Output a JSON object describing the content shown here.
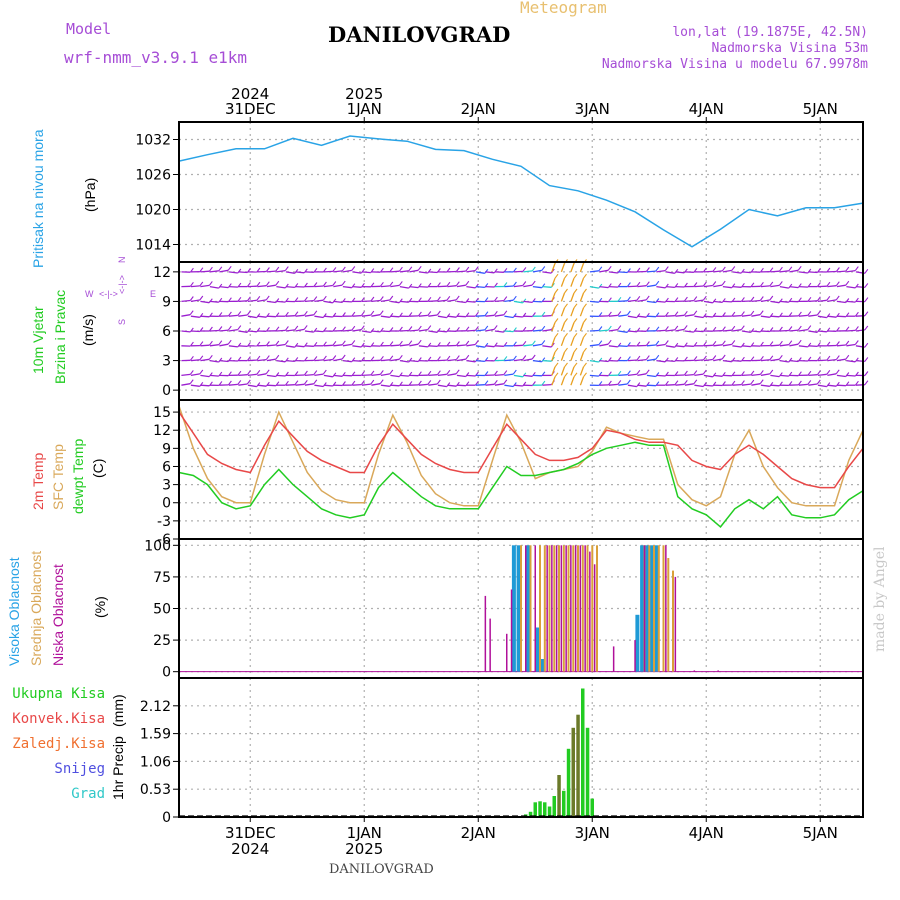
{
  "header": {
    "model_label": "Model",
    "model_name": "wrf-nmm_v3.9.1  e1km",
    "station": "DANILOVGRAD",
    "product": "Meteogram",
    "lonlat": "lon,lat (19.1875E, 42.5N)",
    "elevation": "Nadmorska Visina 53m",
    "elevation_model": "Nadmorska Visina u modelu 67.9978m",
    "footer_station": "DANILOVGRAD",
    "watermark": "made by Angel"
  },
  "colors": {
    "pressure": "#29a3e6",
    "wind_axis_label": "#22cc22",
    "wind_barb_low": "#9b1fd0",
    "wind_barb_mid": "#3355ff",
    "wind_barb_high": "#22cccc",
    "wind_barb_storm": "#e8a020",
    "temp_2m": "#e84848",
    "temp_sfc": "#d9a85a",
    "dewpoint": "#22cc22",
    "cloud_high": "#1e9ad6",
    "cloud_mid": "#d9a03a",
    "cloud_low": "#b0109a",
    "precip_total": "#22cc22",
    "precip_conv": "#e84848",
    "precip_frz": "#f07030",
    "precip_snow": "#5050e0",
    "precip_grad": "#30c8c8",
    "precip_overlap": "#6b7a2a",
    "grid": "#b0b0b0"
  },
  "time_axis": {
    "top_labels": [
      {
        "year": "2024",
        "day": "31DEC"
      },
      {
        "year": "2025",
        "day": "1JAN"
      },
      {
        "year": "",
        "day": "2JAN"
      },
      {
        "year": "",
        "day": "3JAN"
      },
      {
        "year": "",
        "day": "4JAN"
      },
      {
        "year": "",
        "day": "5JAN"
      }
    ],
    "bottom_labels": [
      {
        "day": "31DEC",
        "year": "2024"
      },
      {
        "day": "1JAN",
        "year": "2025"
      },
      {
        "day": "2JAN",
        "year": ""
      },
      {
        "day": "3JAN",
        "year": ""
      },
      {
        "day": "4JAN",
        "year": ""
      },
      {
        "day": "5JAN",
        "year": ""
      }
    ]
  },
  "chart_data": [
    {
      "type": "line",
      "panel": "pressure",
      "ylabel_main": "Pritisak na nivou mora",
      "unit": "(hPa)",
      "yticks": [
        1014,
        1020,
        1026,
        1032
      ],
      "ylim": [
        1011,
        1035
      ],
      "x_hours": [
        0,
        6,
        12,
        18,
        24,
        30,
        36,
        42,
        48,
        54,
        60,
        66,
        72,
        78,
        84,
        90,
        96,
        102,
        108,
        114,
        120,
        126,
        132,
        138,
        144
      ],
      "series": [
        {
          "values": [
            1028.3,
            1029.4,
            1030.4,
            1030.4,
            1032.2,
            1031.0,
            1032.6,
            1032.1,
            1031.7,
            1030.3,
            1030.1,
            1028.6,
            1027.4,
            1024.1,
            1023.2,
            1021.6,
            1019.6,
            1016.5,
            1013.6,
            1016.6,
            1020.0,
            1018.9,
            1020.3,
            1020.3,
            1021.1
          ]
        }
      ],
      "grid": true
    },
    {
      "type": "barbs",
      "panel": "wind",
      "ylabel_main": "10m Vjetar",
      "ylabel_sub": "Brzina i Pravac",
      "unit": "(m/s)",
      "compass_n": "N",
      "compass_s": "S",
      "compass_w": "W",
      "compass_e": "E",
      "yticks": [
        0,
        3,
        6,
        9,
        12
      ],
      "ylim": [
        -1,
        13
      ],
      "grid": true
    },
    {
      "type": "line",
      "panel": "temperature",
      "ylabel_1": "2m Temp",
      "ylabel_2": "SFC Temp",
      "ylabel_3": "dewpt Temp",
      "unit": "(C)",
      "yticks": [
        -6,
        -3,
        0,
        3,
        6,
        9,
        12,
        15
      ],
      "ylim": [
        -6,
        17
      ],
      "x_hours": [
        0,
        3,
        6,
        9,
        12,
        15,
        18,
        21,
        24,
        27,
        30,
        33,
        36,
        39,
        42,
        45,
        48,
        51,
        54,
        57,
        60,
        63,
        66,
        69,
        72,
        75,
        78,
        81,
        84,
        87,
        90,
        93,
        96,
        99,
        102,
        105,
        108,
        111,
        114,
        117,
        120,
        123,
        126,
        129,
        132,
        135,
        138,
        141,
        144
      ],
      "series": [
        {
          "name": "2m Temp",
          "values": [
            15.0,
            11.5,
            8.0,
            6.5,
            5.5,
            5.0,
            9.5,
            13.5,
            11.0,
            8.5,
            7.0,
            6.0,
            5.0,
            5.0,
            9.5,
            13.0,
            10.5,
            8.0,
            6.5,
            5.5,
            5.0,
            5.0,
            9.0,
            13.0,
            10.5,
            8.0,
            7.0,
            7.0,
            7.5,
            9.0,
            12.0,
            11.5,
            10.5,
            10.0,
            10.0,
            9.5,
            7.0,
            6.0,
            5.5,
            8.0,
            9.5,
            8.0,
            6.0,
            4.0,
            3.0,
            2.5,
            2.5,
            6.0,
            9.0
          ]
        },
        {
          "name": "SFC Temp",
          "values": [
            16.0,
            9.0,
            4.0,
            1.0,
            0.0,
            0.0,
            8.0,
            15.0,
            10.0,
            5.0,
            2.0,
            0.5,
            0.0,
            0.0,
            8.0,
            14.5,
            10.0,
            4.5,
            1.5,
            0.0,
            -0.5,
            -0.5,
            7.0,
            14.5,
            10.0,
            4.0,
            5.0,
            5.5,
            6.0,
            8.5,
            12.5,
            11.5,
            11.0,
            10.5,
            10.5,
            3.0,
            0.5,
            -0.5,
            1.0,
            8.0,
            12.0,
            6.0,
            2.5,
            0.0,
            -0.5,
            -0.5,
            -0.5,
            7.0,
            12.0
          ]
        },
        {
          "name": "dewpt Temp",
          "values": [
            5.0,
            4.5,
            3.0,
            0.0,
            -1.0,
            -0.5,
            3.0,
            5.5,
            3.0,
            1.0,
            -1.0,
            -2.0,
            -2.5,
            -2.0,
            2.5,
            5.0,
            3.0,
            1.0,
            -0.5,
            -1.0,
            -1.0,
            -1.0,
            2.5,
            6.0,
            4.5,
            4.5,
            5.0,
            5.5,
            6.5,
            8.0,
            9.0,
            9.5,
            10.0,
            9.5,
            9.5,
            1.0,
            -1.0,
            -2.0,
            -4.0,
            -1.0,
            0.5,
            -1.0,
            1.0,
            -2.0,
            -2.5,
            -2.5,
            -2.0,
            0.5,
            2.0
          ]
        }
      ],
      "grid": true
    },
    {
      "type": "bar",
      "panel": "clouds",
      "ylabel_1": "Visoka Oblacnost",
      "ylabel_2": "Srednja Oblacnost",
      "ylabel_3": "Niska Oblacnost",
      "unit": "(%)",
      "yticks": [
        0,
        25,
        50,
        75,
        100
      ],
      "ylim": [
        -5,
        105
      ],
      "series": [
        {
          "name": "Visoka Oblacnost",
          "x_hours": [
            70.5,
            71.5,
            73.5,
            75.5,
            76.5,
            96.5,
            97.5,
            98.5,
            99.5,
            100.5
          ],
          "values": [
            100,
            100,
            100,
            35,
            10,
            45,
            100,
            100,
            100,
            100
          ]
        },
        {
          "name": "Srednja Oblacnost",
          "x_hours": [
            72,
            74,
            76,
            77,
            78,
            79,
            80,
            81,
            82,
            83,
            84,
            85,
            86,
            87,
            88,
            98,
            99,
            100,
            101,
            102,
            103,
            104
          ],
          "values": [
            100,
            100,
            100,
            100,
            100,
            100,
            100,
            100,
            100,
            100,
            100,
            100,
            100,
            100,
            100,
            100,
            100,
            100,
            100,
            100,
            90,
            80
          ]
        },
        {
          "name": "Niska Oblacnost",
          "x_hours": [
            64.5,
            65.5,
            69.0,
            70.0,
            73.0,
            75.0,
            77.5,
            78.5,
            79.5,
            80.5,
            81.5,
            82.5,
            83.5,
            84.5,
            85.5,
            86.5,
            87.5,
            91.5,
            96.0,
            98.0,
            102.5,
            104.5,
            108.5,
            113.5
          ],
          "values": [
            60,
            42,
            30,
            65,
            100,
            100,
            100,
            100,
            100,
            100,
            100,
            100,
            100,
            100,
            100,
            95,
            85,
            20,
            25,
            100,
            100,
            75,
            1,
            1
          ]
        }
      ],
      "grid": true
    },
    {
      "type": "bar",
      "panel": "precip",
      "legend": [
        "Ukupna Kisa",
        "Konvek.Kisa",
        "Zaledj.Kisa",
        "Snijeg",
        "Grad"
      ],
      "ylabel": "1hr Precip",
      "unit": "(mm)",
      "yticks": [
        0,
        0.53,
        1.06,
        1.59,
        2.12
      ],
      "ylim": [
        0,
        2.65
      ],
      "x_hours": [
        73,
        74,
        75,
        76,
        77,
        78,
        79,
        80,
        81,
        82,
        83,
        84,
        85,
        86,
        87
      ],
      "series": [
        {
          "name": "Ukupna Kisa",
          "values": [
            0.05,
            0.1,
            0.28,
            0.3,
            0.28,
            0.2,
            0.4,
            0.8,
            0.5,
            1.3,
            1.7,
            1.95,
            2.45,
            1.7,
            0.35
          ]
        },
        {
          "name": "Konvek.Kisa",
          "values": [
            0.0,
            0.0,
            0.0,
            0.0,
            0.0,
            0.0,
            0.0,
            0.8,
            0.0,
            0.0,
            1.7,
            1.95,
            0.0,
            0.0,
            0.0
          ]
        }
      ],
      "grid": true
    }
  ]
}
